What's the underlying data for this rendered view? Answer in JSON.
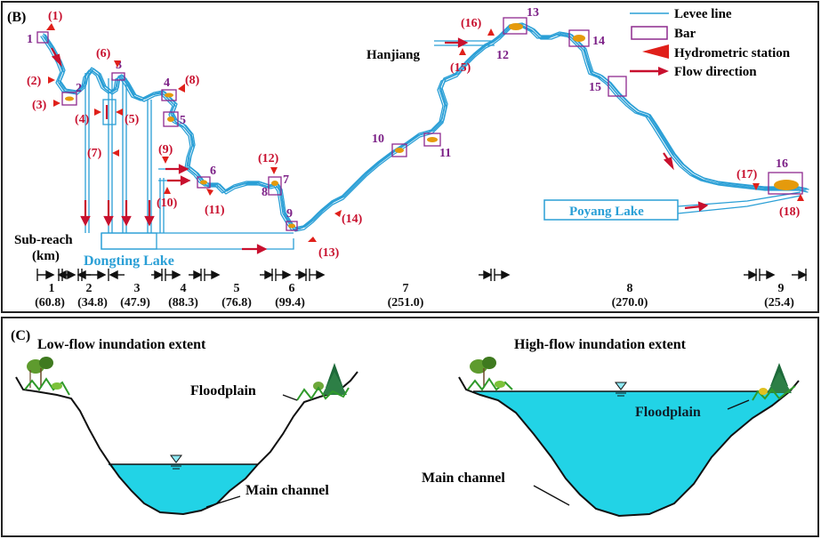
{
  "panel_b": {
    "label": "(B)",
    "legend": {
      "levee_line": "Levee line",
      "bar": "Bar",
      "hydrometric_station": "Hydrometric station",
      "flow_direction": "Flow direction"
    },
    "places": {
      "hanjiang": "Hanjiang",
      "poyang_lake": "Poyang Lake",
      "dongting_lake": "Dongting Lake"
    },
    "sub_reach_title": "Sub-reach",
    "sub_reach_unit": "(km)",
    "bars": [
      "1",
      "2",
      "3",
      "4",
      "5",
      "6",
      "7",
      "8",
      "9",
      "10",
      "11",
      "12",
      "13",
      "14",
      "15",
      "16"
    ],
    "stations": [
      "(1)",
      "(2)",
      "(3)",
      "(4)",
      "(5)",
      "(6)",
      "(7)",
      "(8)",
      "(9)",
      "(10)",
      "(11)",
      "(12)",
      "(13)",
      "(14)",
      "(15)",
      "(16)",
      "(17)",
      "(18)"
    ],
    "sub_reaches": [
      {
        "id": "1",
        "length": "(60.8)"
      },
      {
        "id": "2",
        "length": "(34.8)"
      },
      {
        "id": "3",
        "length": "(47.9)"
      },
      {
        "id": "4",
        "length": "(88.3)"
      },
      {
        "id": "5",
        "length": "(76.8)"
      },
      {
        "id": "6",
        "length": "(99.4)"
      },
      {
        "id": "7",
        "length": "(251.0)"
      },
      {
        "id": "8",
        "length": "(270.0)"
      },
      {
        "id": "9",
        "length": "(25.4)"
      }
    ],
    "colors": {
      "river": "#2a9fd6",
      "bar": "#e59a0c",
      "bar_box": "#8e2a8e",
      "station": "#e0201a",
      "label_red": "#c8102e",
      "label_purple": "#7b1f86",
      "lake_text": "#2a9fd6"
    }
  },
  "panel_c": {
    "label": "(C)",
    "low": {
      "title": "Low-flow inundation extent",
      "floodplain": "Floodplain",
      "main_channel": "Main channel"
    },
    "high": {
      "title": "High-flow inundation extent",
      "floodplain": "Floodplain",
      "main_channel": "Main channel"
    },
    "colors": {
      "water": "#22d3e6",
      "ground": "#111111"
    }
  }
}
